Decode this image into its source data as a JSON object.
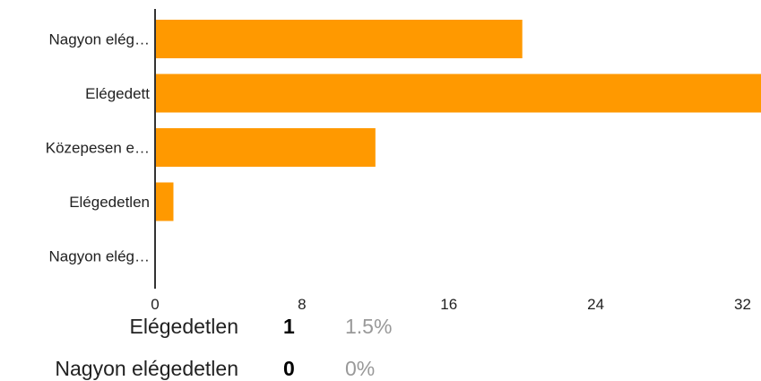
{
  "colors": {
    "bar": "#ff9900",
    "axis": "#333333",
    "text": "#222222",
    "muted": "#999999"
  },
  "chart_data": {
    "type": "bar",
    "orientation": "horizontal",
    "categories": [
      "Nagyon elég…",
      "Elégedett",
      "Közepesen e…",
      "Elégedetlen",
      "Nagyon elég…"
    ],
    "values": [
      20,
      33,
      12,
      1,
      0
    ],
    "xticks": [
      "0",
      "8",
      "16",
      "24",
      "32"
    ],
    "xlim": [
      0,
      33
    ],
    "grid": false,
    "legend": "none"
  },
  "summary": [
    {
      "label": "Elégedetlen",
      "count": "1",
      "percent": "1.5%"
    },
    {
      "label": "Nagyon elégedetlen",
      "count": "0",
      "percent": "0%"
    }
  ]
}
